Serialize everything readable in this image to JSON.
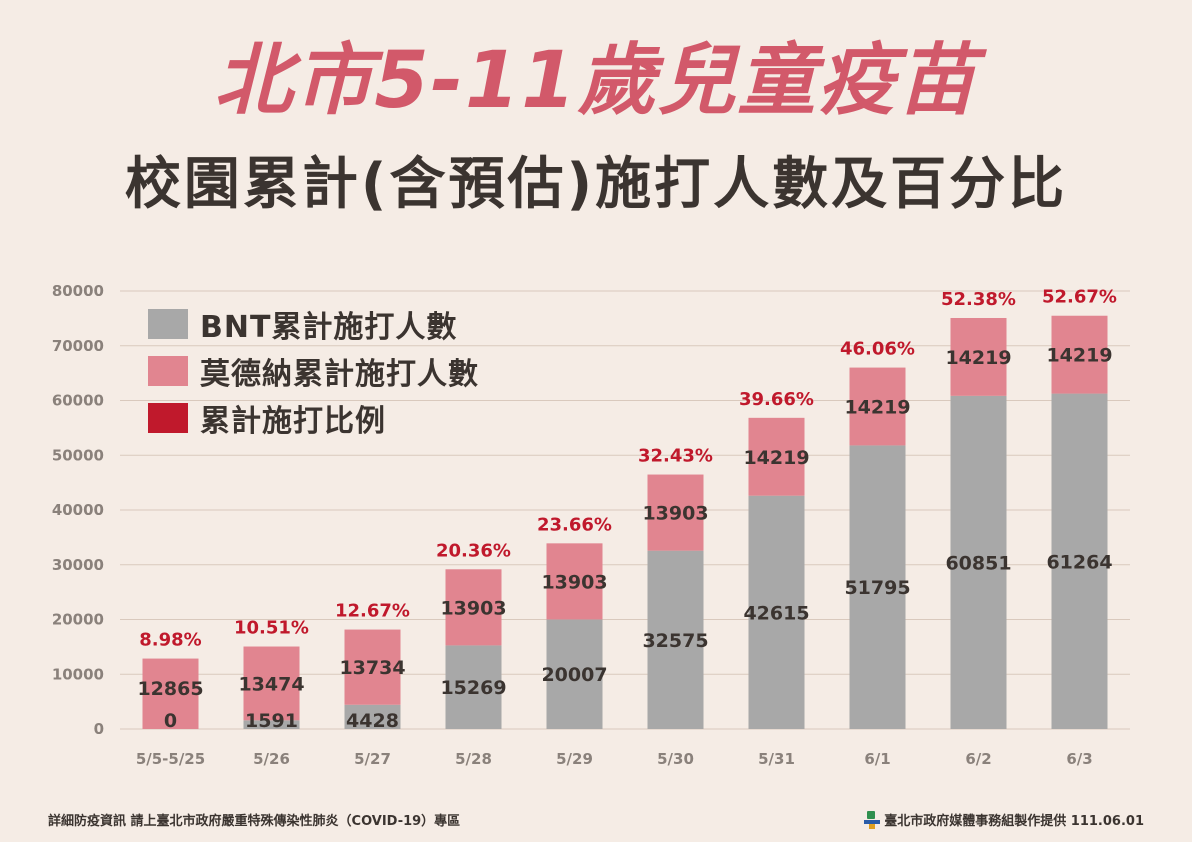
{
  "title_line1": "北市5-11歲兒童疫苗",
  "title_line2": "校園累計(含預估)施打人數及百分比",
  "colors": {
    "bnt": "#a8a8a8",
    "moderna": "#e18590",
    "ratio": "#c0192c",
    "title_accent": "#d2596a",
    "text_dark": "#3b3430",
    "pct_text": "#c0192c"
  },
  "legend": [
    {
      "label": "BNT累計施打人數",
      "color": "#a8a8a8"
    },
    {
      "label": "莫德納累計施打人數",
      "color": "#e18590"
    },
    {
      "label": "累計施打比例",
      "color": "#c0192c"
    }
  ],
  "chart_data": {
    "type": "bar",
    "stacked": true,
    "categories": [
      "5/5-5/25",
      "5/26",
      "5/27",
      "5/28",
      "5/29",
      "5/30",
      "5/31",
      "6/1",
      "6/2",
      "6/3"
    ],
    "series": [
      {
        "name": "BNT累計施打人數",
        "values": [
          0,
          1591,
          4428,
          15269,
          20007,
          32575,
          42615,
          51795,
          60851,
          61264
        ]
      },
      {
        "name": "莫德納累計施打人數",
        "values": [
          12865,
          13474,
          13734,
          13903,
          13903,
          13903,
          14219,
          14219,
          14219,
          14219
        ]
      }
    ],
    "ratio_labels": [
      "8.98%",
      "10.51%",
      "12.67%",
      "20.36%",
      "23.66%",
      "32.43%",
      "39.66%",
      "46.06%",
      "52.38%",
      "52.67%"
    ],
    "ylim": [
      0,
      80000
    ],
    "yticks": [
      0,
      10000,
      20000,
      30000,
      40000,
      50000,
      60000,
      70000,
      80000
    ],
    "grid": true,
    "legend_position": "top-left"
  },
  "footer": {
    "left": "詳細防疫資訊 請上臺北市政府嚴重特殊傳染性肺炎（COVID-19）專區",
    "right": "臺北市政府媒體事務組製作提供 111.06.01"
  }
}
